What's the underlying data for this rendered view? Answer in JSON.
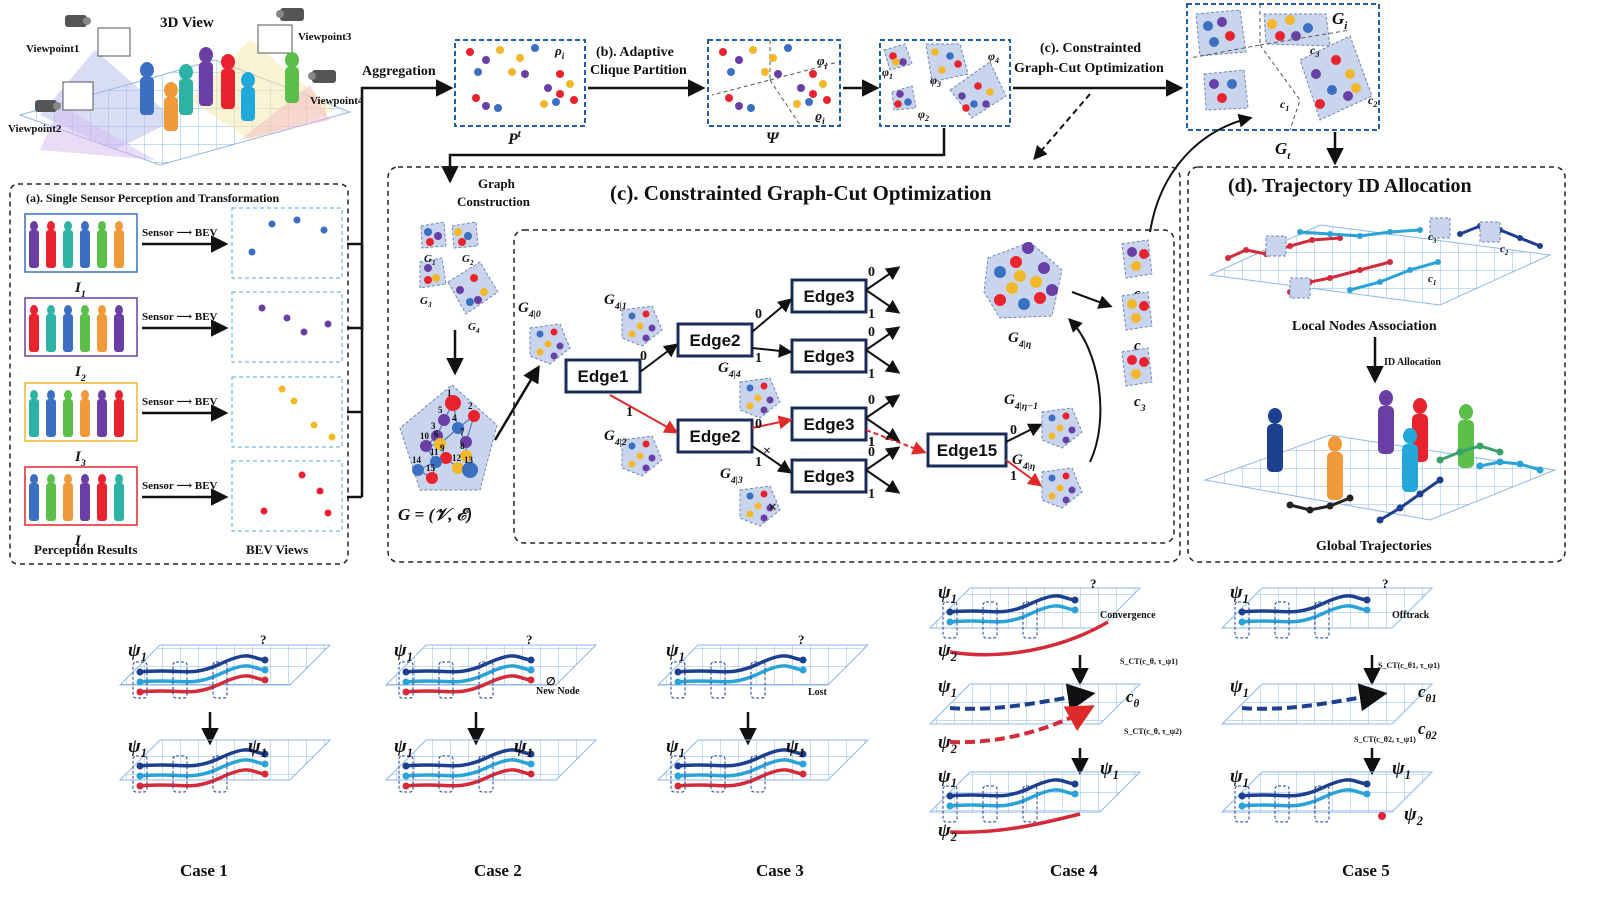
{
  "colors": {
    "blue_node": "#3a6fc2",
    "purple_node": "#6a3fa5",
    "yellow_node": "#f2b82a",
    "red_node": "#e8232e",
    "dark_blue_traj": "#1d3f8f",
    "light_blue_traj": "#2aa3d8",
    "red_traj": "#d42a3a",
    "clique_fill": "#c9d5ec",
    "frame_blue": "#1f5fa8",
    "grid": "#8fb8e8"
  },
  "top": {
    "view3d_title": "3D View",
    "viewpoints": [
      "Viewpoint1",
      "Viewpoint2",
      "Viewpoint3",
      "Viewpoint4"
    ],
    "aggregation": "Aggregation",
    "pt_label": "P",
    "pt_sup": "t",
    "rho_i": "ρ",
    "rho_sub": "i",
    "adaptive_line1": "(b). Adaptive",
    "adaptive_line2": "Clique Partition",
    "psi_label": "Ψ",
    "varphi_i": "φ",
    "varphi_sub": "i",
    "varrho_i": "ϱ",
    "varphi1": "φ",
    "varphi2": "φ",
    "varphi3": "φ",
    "varphi4": "φ",
    "cgo_line1": "(c). Constrainted",
    "cgo_line2": "Graph-Cut Optimization",
    "Gi": "G",
    "Gi_sub": "i",
    "Gt": "G",
    "Gt_sub": "t",
    "c1": "c",
    "c2": "c",
    "c3": "c"
  },
  "panel_a": {
    "title": "(a). Single Sensor Perception and Transformation",
    "rows": [
      {
        "image": "I",
        "sub": "1",
        "arrow": "Sensor ⟶ BEV",
        "frame_color": "#3a6fc2",
        "dot_color": "#3a6fc2"
      },
      {
        "image": "I",
        "sub": "2",
        "arrow": "Sensor ⟶ BEV",
        "frame_color": "#6a3fa5",
        "dot_color": "#6a3fa5"
      },
      {
        "image": "I",
        "sub": "3",
        "arrow": "Sensor ⟶ BEV",
        "frame_color": "#f2b82a",
        "dot_color": "#f2b82a"
      },
      {
        "image": "I",
        "sub": "4",
        "arrow": "Sensor ⟶ BEV",
        "frame_color": "#e8232e",
        "dot_color": "#e8232e"
      }
    ],
    "footer_left": "Perception Results",
    "footer_right": "BEV Views"
  },
  "panel_c": {
    "title": "(c). Constrainted Graph-Cut Optimization",
    "graph_construction_1": "Graph",
    "graph_construction_2": "Construction",
    "g_labels": [
      "G",
      "G",
      "G",
      "G"
    ],
    "g_subs": [
      "1",
      "2",
      "3",
      "4"
    ],
    "graph_formula": "G = (𝒱, ℰ)",
    "node_numbers": [
      "1",
      "2",
      "3",
      "4",
      "5",
      "6",
      "7",
      "8",
      "9",
      "10",
      "11",
      "12",
      "13",
      "14",
      "15"
    ],
    "edges": {
      "edge1": "Edge1",
      "edge2a": "Edge2",
      "edge2b": "Edge2",
      "edge3a": "Edge3",
      "edge3b": "Edge3",
      "edge3c": "Edge3",
      "edge3d": "Edge3",
      "edge15": "Edge15"
    },
    "branch_zero": "0",
    "branch_one": "1",
    "sub_graphs": {
      "g40": "G",
      "g40_sub": "4|0",
      "g41": "G",
      "g41_sub": "4|1",
      "g42": "G",
      "g42_sub": "4|2",
      "g43": "G",
      "g43_sub": "4|3",
      "g44": "G",
      "g44_sub": "4|4",
      "g4eta1": "G",
      "g4eta1_sub": "4|η−1",
      "g4eta": "G",
      "g4eta_sub": "4|η",
      "g4eta_big": "G",
      "g4eta_big_sub": "4|η"
    },
    "clique_c": [
      "c",
      "c",
      "c"
    ],
    "clique_c_subs": [
      "1",
      "2",
      "3"
    ]
  },
  "panel_d": {
    "title": "(d). Trajectory ID Allocation",
    "local_assoc": "Local Nodes Association",
    "id_alloc": "ID Allocation",
    "global_traj": "Global Trajectories",
    "c_labels": [
      "c",
      "c",
      "c"
    ],
    "c_subs": [
      "3",
      "2",
      "1"
    ]
  },
  "cases": [
    {
      "label": "Case 1",
      "psi_top": "ψ",
      "psi_top_sub": "1",
      "note": "?",
      "psi_bottom_left": "ψ",
      "psi_bottom_left_sub": "1",
      "psi_bottom_right": "ψ",
      "psi_bottom_right_sub": "1"
    },
    {
      "label": "Case 2",
      "psi_top": "ψ",
      "psi_top_sub": "1",
      "note": "?",
      "extra": "New Node",
      "empty": "∅",
      "psi_bottom_left": "ψ",
      "psi_bottom_left_sub": "1",
      "psi_bottom_right": "ψ",
      "psi_bottom_right_sub": "1"
    },
    {
      "label": "Case 3",
      "psi_top": "ψ",
      "psi_top_sub": "1",
      "note": "?",
      "extra": "Lost",
      "psi_bottom_left": "ψ",
      "psi_bottom_left_sub": "1",
      "psi_bottom_right": "ψ",
      "psi_bottom_right_sub": "1"
    },
    {
      "label": "Case 4",
      "psi_top": "ψ",
      "psi_top_sub": "1",
      "psi_top2": "ψ",
      "psi_top2_sub": "2",
      "note": "?",
      "extra": "Convergence",
      "c_theta": "c",
      "c_theta_sub": "θ",
      "psi_mid1": "ψ",
      "psi_mid1_sub": "1",
      "psi_mid2": "ψ",
      "psi_mid2_sub": "2",
      "sct1": "S",
      "sct1_sub": "CT",
      "sct1_args": "(c",
      "sct1_args2": "θ",
      "sct1_args3": ", τ",
      "sct1_args4": "ψ",
      "sct1_args5": "1",
      "sct1_close": ")",
      "sct2": "S",
      "sct2_sub": "CT",
      "sct2_args": "(c",
      "sct2_args2": "θ",
      "sct2_args3": ", τ",
      "sct2_args4": "ψ",
      "sct2_args5": "2",
      "sct2_close": ")",
      "psi_bottom_left": "ψ",
      "psi_bottom_left_sub": "1",
      "psi_bottom_right": "ψ",
      "psi_bottom_right_sub": "1",
      "psi_bottom_left2": "ψ",
      "psi_bottom_left2_sub": "2"
    },
    {
      "label": "Case 5",
      "psi_top": "ψ",
      "psi_top_sub": "1",
      "note": "?",
      "extra": "Offtrack",
      "c_theta1": "c",
      "c_theta1_sub": "θ",
      "c_theta1_subsub": "1",
      "c_theta2": "c",
      "c_theta2_sub": "θ",
      "c_theta2_subsub": "2",
      "psi_mid1": "ψ",
      "psi_mid1_sub": "1",
      "sct1": "S",
      "sct1_sub": "CT",
      "sct1_args": "(c",
      "sct1_args2": "θ",
      "sct1_args2b": "1",
      "sct1_args3": ", τ",
      "sct1_args4": "ψ",
      "sct1_args5": "1",
      "sct1_close": ")",
      "sct2": "S",
      "sct2_sub": "CT",
      "sct2_args": "(c",
      "sct2_args2": "θ",
      "sct2_args2b": "2",
      "sct2_args3": ", τ",
      "sct2_args4": "ψ",
      "sct2_args5": "1",
      "sct2_close": ")",
      "psi_bottom_left": "ψ",
      "psi_bottom_left_sub": "1",
      "psi_bottom_right": "ψ",
      "psi_bottom_right_sub": "1",
      "psi_bottom_right2": "ψ",
      "psi_bottom_right2_sub": "2"
    }
  ]
}
